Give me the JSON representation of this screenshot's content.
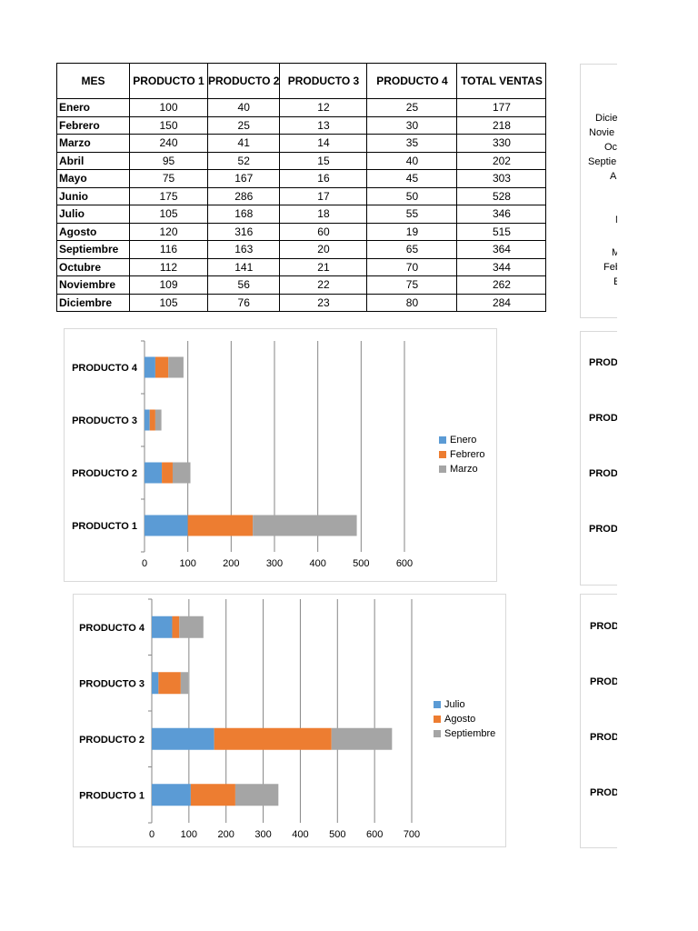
{
  "table": {
    "headers": [
      "MES",
      "PRODUCTO 1",
      "PRODUCTO 2",
      "PRODUCTO 3",
      "PRODUCTO 4",
      "TOTAL VENTAS"
    ],
    "rows": [
      [
        "Enero",
        "100",
        "40",
        "12",
        "25",
        "177"
      ],
      [
        "Febrero",
        "150",
        "25",
        "13",
        "30",
        "218"
      ],
      [
        "Marzo",
        "240",
        "41",
        "14",
        "35",
        "330"
      ],
      [
        "Abril",
        "95",
        "52",
        "15",
        "40",
        "202"
      ],
      [
        "Mayo",
        "75",
        "167",
        "16",
        "45",
        "303"
      ],
      [
        "Junio",
        "175",
        "286",
        "17",
        "50",
        "528"
      ],
      [
        "Julio",
        "105",
        "168",
        "18",
        "55",
        "346"
      ],
      [
        "Agosto",
        "120",
        "316",
        "60",
        "19",
        "515"
      ],
      [
        "Septiembre",
        "116",
        "163",
        "20",
        "65",
        "364"
      ],
      [
        "Octubre",
        "112",
        "141",
        "21",
        "70",
        "344"
      ],
      [
        "Noviembre",
        "109",
        "56",
        "22",
        "75",
        "262"
      ],
      [
        "Diciembre",
        "105",
        "76",
        "23",
        "80",
        "284"
      ]
    ]
  },
  "chart_data": [
    {
      "type": "bar",
      "orientation": "horizontal",
      "stacked": true,
      "categories": [
        "PRODUCTO 1",
        "PRODUCTO 2",
        "PRODUCTO 3",
        "PRODUCTO 4"
      ],
      "series": [
        {
          "name": "Enero",
          "values": [
            100,
            40,
            12,
            25
          ],
          "color": "#5b9bd5"
        },
        {
          "name": "Febrero",
          "values": [
            150,
            25,
            13,
            30
          ],
          "color": "#ed7d31"
        },
        {
          "name": "Marzo",
          "values": [
            240,
            41,
            14,
            35
          ],
          "color": "#a5a5a5"
        }
      ],
      "xlim": [
        0,
        600
      ],
      "xticks": [
        0,
        100,
        200,
        300,
        400,
        500,
        600
      ],
      "grid": true,
      "legend": "right",
      "title": "",
      "xlabel": "",
      "ylabel": ""
    },
    {
      "type": "bar",
      "orientation": "horizontal",
      "stacked": true,
      "categories": [
        "PRODUCTO 1",
        "PRODUCTO 2",
        "PRODUCTO 3",
        "PRODUCTO 4"
      ],
      "series": [
        {
          "name": "Julio",
          "values": [
            105,
            168,
            18,
            55
          ],
          "color": "#5b9bd5"
        },
        {
          "name": "Agosto",
          "values": [
            120,
            316,
            60,
            19
          ],
          "color": "#ed7d31"
        },
        {
          "name": "Septiembre",
          "values": [
            116,
            163,
            20,
            65
          ],
          "color": "#a5a5a5"
        }
      ],
      "xlim": [
        0,
        700
      ],
      "xticks": [
        0,
        100,
        200,
        300,
        400,
        500,
        600,
        700
      ],
      "grid": true,
      "legend": "right",
      "title": "",
      "xlabel": "",
      "ylabel": ""
    }
  ],
  "side_panels": {
    "top_labels": [
      "Dicie",
      "Novie",
      "Oc",
      "Septie",
      "A",
      "",
      "N",
      "M",
      "Feb",
      "E"
    ],
    "middle_labels": [
      "PRODU",
      "PRODU",
      "PRODU",
      "PRODU"
    ],
    "bottom_labels": [
      "PROD",
      "PROD",
      "PROD",
      "PROD"
    ]
  },
  "colors": {
    "series_blue": "#5b9bd5",
    "series_orange": "#ed7d31",
    "series_gray": "#a5a5a5",
    "gridline": "#868686"
  }
}
